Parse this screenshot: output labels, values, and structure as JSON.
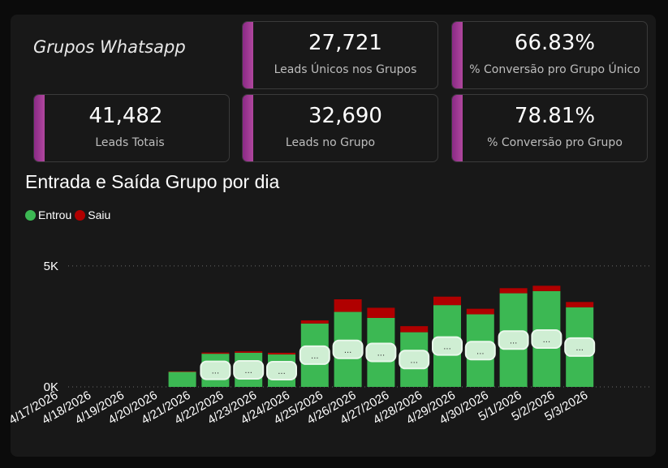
{
  "header": {
    "title": "Grupos Whatsapp"
  },
  "kpis": [
    {
      "value": "27,721",
      "label": "Leads Únicos nos Grupos"
    },
    {
      "value": "66.83%",
      "label": "% Conversão pro Grupo Único"
    },
    {
      "value": "41,482",
      "label": "Leads Totais"
    },
    {
      "value": "32,690",
      "label": "Leads no Grupo"
    },
    {
      "value": "78.81%",
      "label": "% Conversão pro Grupo"
    }
  ],
  "colors": {
    "entrou": "#3cb853",
    "saiu": "#b00000",
    "accent": "#a03c96",
    "data_label_bg": "#cfeed3"
  },
  "chart_data": {
    "type": "bar",
    "stacked": true,
    "title": "Entrada e Saída Grupo por dia",
    "xlabel": "",
    "ylabel": "",
    "ylim": [
      0,
      5800
    ],
    "yticks": [
      0,
      5000
    ],
    "ytick_labels": [
      "0K",
      "5K"
    ],
    "grid": true,
    "legend_position": "top-left",
    "categories": [
      "4/17/2026",
      "4/18/2026",
      "4/19/2026",
      "4/20/2026",
      "4/21/2026",
      "4/22/2026",
      "4/23/2026",
      "4/24/2026",
      "4/25/2026",
      "4/26/2026",
      "4/27/2026",
      "4/28/2026",
      "4/29/2026",
      "4/30/2026",
      "5/1/2026",
      "5/2/2026",
      "5/3/2026"
    ],
    "series": [
      {
        "name": "Entrou",
        "values": [
          0,
          0,
          0,
          0,
          620,
          1370,
          1410,
          1340,
          2620,
          3100,
          2850,
          2260,
          3380,
          3000,
          3870,
          3960,
          3290
        ]
      },
      {
        "name": "Saiu",
        "values": [
          0,
          0,
          0,
          0,
          20,
          50,
          60,
          70,
          130,
          520,
          420,
          250,
          350,
          230,
          210,
          220,
          220
        ]
      }
    ],
    "data_labels": [
      "",
      "",
      "",
      "",
      "",
      "...",
      "...",
      "...",
      "...",
      "...",
      "...",
      "...",
      "...",
      "...",
      "...",
      "...",
      "..."
    ]
  }
}
